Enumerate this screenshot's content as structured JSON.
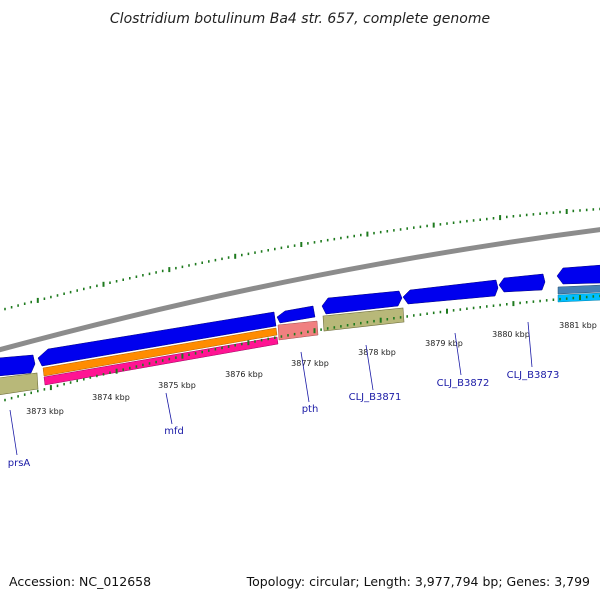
{
  "title": "Clostridium botulinum Ba4 str. 657, complete genome",
  "footer": {
    "accession": "Accession: NC_012658",
    "summary": "Topology: circular; Length: 3,977,794 bp; Genes: 3,799"
  },
  "colors": {
    "backbone": "#8c8c8c",
    "cds": "#0000ee",
    "rrna_like": "#b8b879",
    "orange": "#ff8c00",
    "magenta": "#ff1493",
    "salmon": "#f08080",
    "steel": "#4682b4",
    "cyan": "#00bfff",
    "tick": "#1e7a1e",
    "label": "#1a1aa6"
  },
  "kbp_labels": [
    "3873 kbp",
    "3874 kbp",
    "3875 kbp",
    "3876 kbp",
    "3877 kbp",
    "3878 kbp",
    "3879 kbp",
    "3880 kbp",
    "3881 kbp"
  ],
  "gene_labels": [
    "prsA",
    "mfd",
    "pth",
    "CLJ_B3871",
    "CLJ_B3872",
    "CLJ_B3873"
  ]
}
